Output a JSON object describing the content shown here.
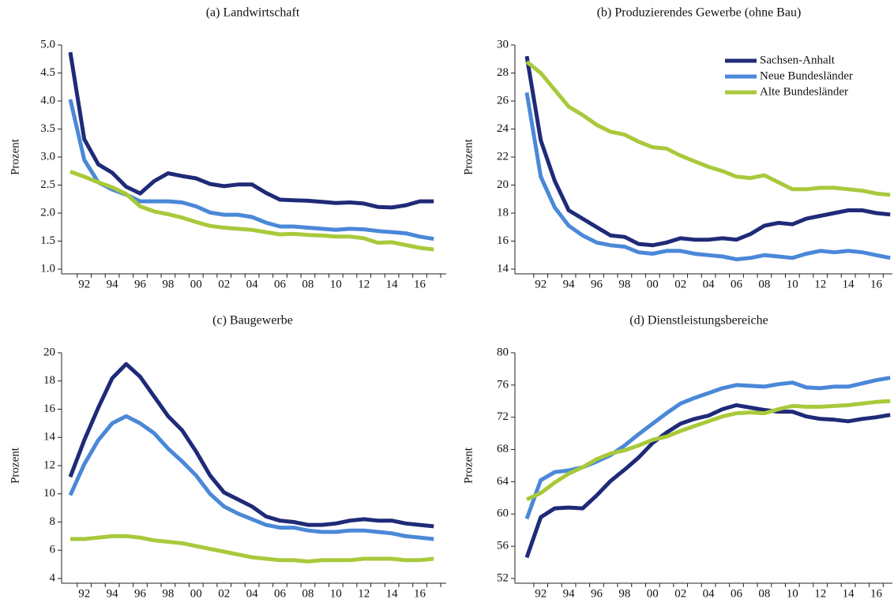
{
  "chart_data": [
    {
      "type": "line",
      "title": "(a) Landwirtschaft",
      "ylabel": "Prozent",
      "categories": [
        null,
        "92",
        null,
        "94",
        null,
        "96",
        null,
        "98",
        null,
        "00",
        null,
        "02",
        null,
        "04",
        null,
        "06",
        null,
        "08",
        null,
        "10",
        null,
        "12",
        null,
        "14",
        null,
        "16",
        null
      ],
      "ylim": [
        1.0,
        5.0
      ],
      "yticks": [
        {
          "value": 1.0,
          "label": "1.0"
        },
        {
          "value": 1.5,
          "label": "1.5"
        },
        {
          "value": 2.0,
          "label": "2.0"
        },
        {
          "value": 2.5,
          "label": "2.5"
        },
        {
          "value": 3.0,
          "label": "3.0"
        },
        {
          "value": 3.5,
          "label": "3.5"
        },
        {
          "value": 4.0,
          "label": "4.0"
        },
        {
          "value": 4.5,
          "label": "4.5"
        },
        {
          "value": 5.0,
          "label": "5.0"
        }
      ],
      "series": [
        {
          "color": "#1f2a78",
          "values": [
            4.87,
            3.32,
            2.87,
            2.72,
            2.47,
            2.35,
            2.57,
            2.71,
            2.66,
            2.62,
            2.52,
            2.48,
            2.51,
            2.51,
            2.36,
            2.24,
            2.23,
            2.22,
            2.2,
            2.18,
            2.19,
            2.17,
            2.11,
            2.1,
            2.14,
            2.21,
            2.21
          ]
        },
        {
          "color": "#4a88d8",
          "values": [
            4.03,
            2.95,
            2.55,
            2.42,
            2.33,
            2.21,
            2.21,
            2.21,
            2.19,
            2.12,
            2.01,
            1.97,
            1.97,
            1.93,
            1.83,
            1.76,
            1.76,
            1.74,
            1.72,
            1.7,
            1.72,
            1.71,
            1.68,
            1.66,
            1.64,
            1.58,
            1.54
          ]
        },
        {
          "color": "#a9c93b",
          "values": [
            2.74,
            2.65,
            2.55,
            2.46,
            2.34,
            2.12,
            2.03,
            1.98,
            1.92,
            1.84,
            1.77,
            1.74,
            1.72,
            1.7,
            1.66,
            1.62,
            1.63,
            1.61,
            1.6,
            1.58,
            1.58,
            1.55,
            1.47,
            1.48,
            1.43,
            1.38,
            1.35
          ]
        }
      ]
    },
    {
      "type": "line",
      "title": "(b) Produzierendes Gewerbe (ohne Bau)",
      "ylabel": "Prozent",
      "legend": "upper right",
      "categories": [
        null,
        "92",
        null,
        "94",
        null,
        "96",
        null,
        "98",
        null,
        "00",
        null,
        "02",
        null,
        "04",
        null,
        "06",
        null,
        "08",
        null,
        "10",
        null,
        "12",
        null,
        "14",
        null,
        "16",
        null
      ],
      "ylim": [
        14,
        30
      ],
      "yticks": [
        14,
        16,
        18,
        20,
        22,
        24,
        26,
        28,
        30
      ],
      "series": [
        {
          "name": "Sachsen-Anhalt",
          "color": "#1f2a78",
          "values": [
            29.2,
            23.2,
            20.3,
            18.2,
            17.6,
            17.0,
            16.4,
            16.3,
            15.8,
            15.7,
            15.9,
            16.2,
            16.1,
            16.1,
            16.2,
            16.1,
            16.5,
            17.1,
            17.3,
            17.2,
            17.6,
            17.8,
            18.0,
            18.2,
            18.2,
            18.0,
            17.9
          ]
        },
        {
          "name": "Neue Bundesländer",
          "color": "#4a88d8",
          "values": [
            26.6,
            20.6,
            18.4,
            17.1,
            16.4,
            15.9,
            15.7,
            15.6,
            15.2,
            15.1,
            15.3,
            15.3,
            15.1,
            15.0,
            14.9,
            14.7,
            14.8,
            15.0,
            14.9,
            14.8,
            15.1,
            15.3,
            15.2,
            15.3,
            15.2,
            15.0,
            14.8
          ]
        },
        {
          "name": "Alte Bundesländer",
          "color": "#a9c93b",
          "values": [
            28.8,
            28.0,
            26.8,
            25.6,
            25.0,
            24.3,
            23.8,
            23.6,
            23.1,
            22.7,
            22.6,
            22.1,
            21.7,
            21.3,
            21.0,
            20.6,
            20.5,
            20.7,
            20.2,
            19.7,
            19.7,
            19.8,
            19.8,
            19.7,
            19.6,
            19.4,
            19.3
          ]
        }
      ]
    },
    {
      "type": "line",
      "title": "(c) Baugewerbe",
      "ylabel": "Prozent",
      "categories": [
        null,
        "92",
        null,
        "94",
        null,
        "96",
        null,
        "98",
        null,
        "00",
        null,
        "02",
        null,
        "04",
        null,
        "06",
        null,
        "08",
        null,
        "10",
        null,
        "12",
        null,
        "14",
        null,
        "16",
        null
      ],
      "ylim": [
        4,
        20
      ],
      "yticks": [
        4,
        6,
        8,
        10,
        12,
        14,
        16,
        18,
        20
      ],
      "series": [
        {
          "color": "#1f2a78",
          "values": [
            11.2,
            13.8,
            16.1,
            18.2,
            19.2,
            18.3,
            16.9,
            15.5,
            14.5,
            13.0,
            11.3,
            10.1,
            9.6,
            9.1,
            8.4,
            8.1,
            8.0,
            7.8,
            7.8,
            7.9,
            8.1,
            8.2,
            8.1,
            8.1,
            7.9,
            7.8,
            7.7
          ]
        },
        {
          "color": "#4a88d8",
          "values": [
            9.9,
            12.1,
            13.8,
            15.0,
            15.5,
            15.0,
            14.3,
            13.2,
            12.3,
            11.3,
            10.0,
            9.1,
            8.6,
            8.2,
            7.8,
            7.6,
            7.6,
            7.4,
            7.3,
            7.3,
            7.4,
            7.4,
            7.3,
            7.2,
            7.0,
            6.9,
            6.8
          ]
        },
        {
          "color": "#a9c93b",
          "values": [
            6.8,
            6.8,
            6.9,
            7.0,
            7.0,
            6.9,
            6.7,
            6.6,
            6.5,
            6.3,
            6.1,
            5.9,
            5.7,
            5.5,
            5.4,
            5.3,
            5.3,
            5.2,
            5.3,
            5.3,
            5.3,
            5.4,
            5.4,
            5.4,
            5.3,
            5.3,
            5.4
          ]
        }
      ]
    },
    {
      "type": "line",
      "title": "(d) Dienstleistungsbereiche",
      "ylabel": "Prozent",
      "categories": [
        null,
        "92",
        null,
        "94",
        null,
        "96",
        null,
        "98",
        null,
        "00",
        null,
        "02",
        null,
        "04",
        null,
        "06",
        null,
        "08",
        null,
        "10",
        null,
        "12",
        null,
        "14",
        null,
        "16",
        null
      ],
      "ylim": [
        52,
        80
      ],
      "yticks": [
        52,
        56,
        60,
        64,
        68,
        72,
        76,
        80
      ],
      "series": [
        {
          "color": "#1f2a78",
          "values": [
            54.6,
            59.6,
            60.7,
            60.8,
            60.7,
            62.3,
            64.1,
            65.5,
            67.0,
            68.8,
            70.1,
            71.2,
            71.8,
            72.2,
            73.0,
            73.5,
            73.2,
            72.9,
            72.7,
            72.7,
            72.1,
            71.8,
            71.7,
            71.5,
            71.8,
            72.0,
            72.3
          ]
        },
        {
          "color": "#4a88d8",
          "values": [
            59.4,
            64.2,
            65.2,
            65.4,
            65.8,
            66.5,
            67.3,
            68.5,
            69.9,
            71.2,
            72.5,
            73.7,
            74.4,
            75.0,
            75.6,
            76.0,
            75.9,
            75.8,
            76.1,
            76.3,
            75.7,
            75.6,
            75.8,
            75.8,
            76.2,
            76.6,
            76.9
          ]
        },
        {
          "color": "#a9c93b",
          "values": [
            61.8,
            62.6,
            63.9,
            65.0,
            65.8,
            66.8,
            67.5,
            67.9,
            68.5,
            69.2,
            69.6,
            70.3,
            70.9,
            71.5,
            72.1,
            72.5,
            72.6,
            72.5,
            73.0,
            73.4,
            73.3,
            73.3,
            73.4,
            73.5,
            73.7,
            73.9,
            74.0
          ]
        }
      ]
    }
  ]
}
